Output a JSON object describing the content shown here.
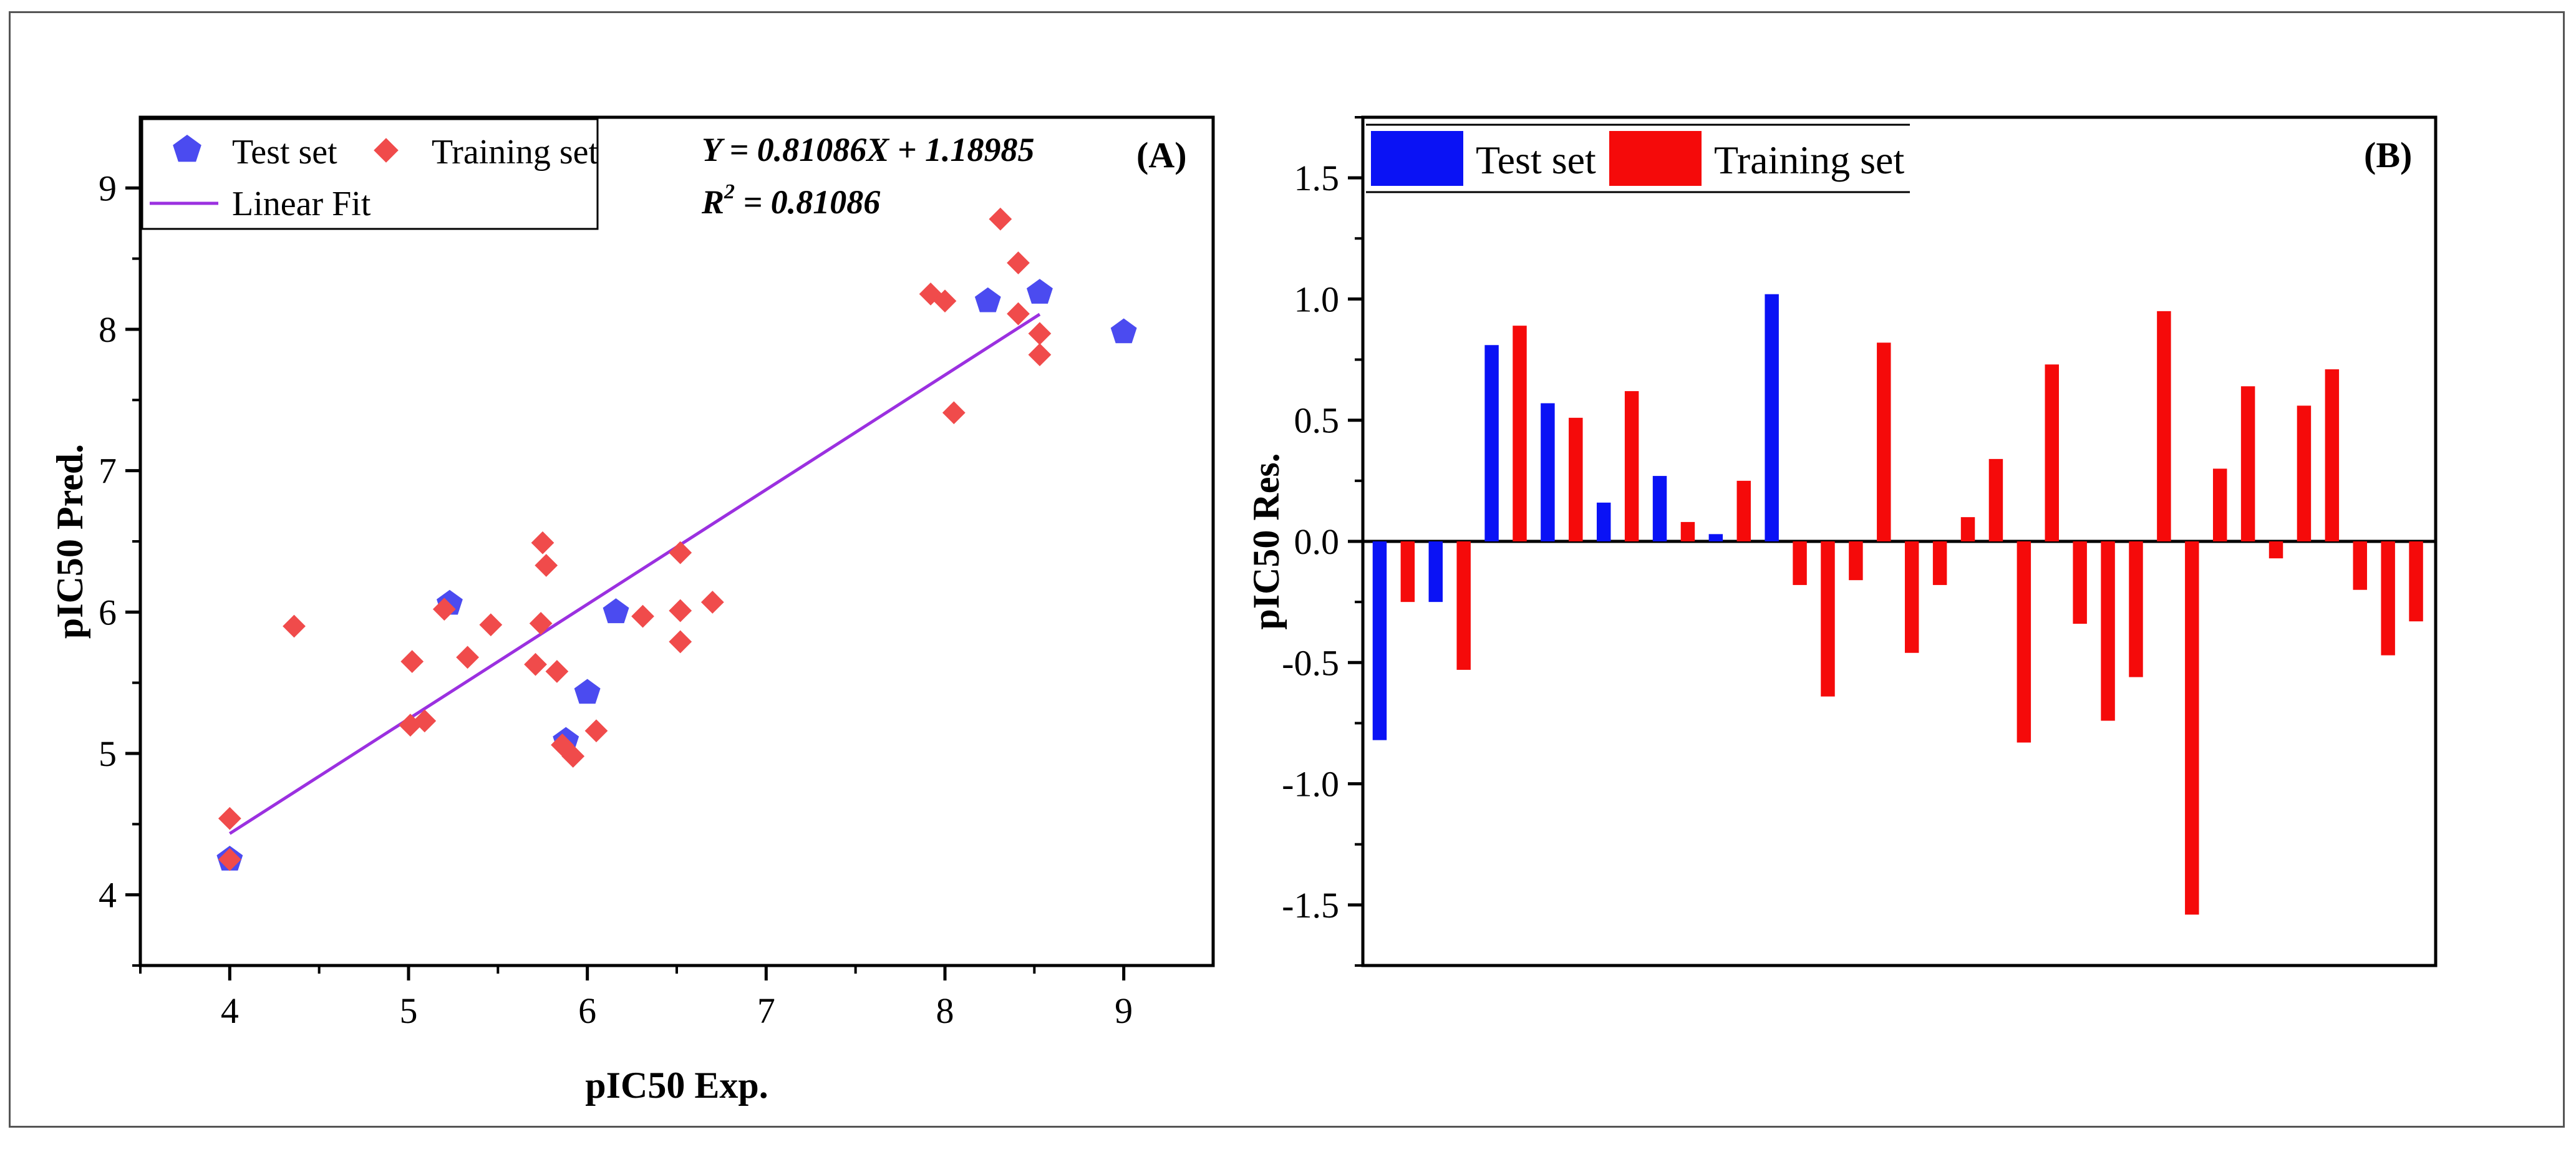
{
  "chart_data": [
    {
      "panel_label": "(A)",
      "type": "scatter",
      "xlabel": "pIC50 Exp.",
      "ylabel": "pIC50 Pred.",
      "xlim": [
        3.5,
        9.5
      ],
      "ylim": [
        3.5,
        9.5
      ],
      "xticks": [
        "4",
        "5",
        "6",
        "7",
        "8",
        "9"
      ],
      "yticks": [
        "4",
        "5",
        "6",
        "7",
        "8",
        "9"
      ],
      "legend": {
        "test": "Test set",
        "train": "Training set",
        "fit": "Linear Fit"
      },
      "equation": "Y = 0.81086X + 1.18985",
      "r2_prefix": "R",
      "r2_sup": "2",
      "r2_value": " = 0.81086",
      "fit": {
        "slope": 0.81086,
        "intercept": 1.18985,
        "x_range": [
          4.0,
          8.53
        ]
      },
      "colors": {
        "test": "#4b4bf0",
        "train": "#f04b4b",
        "fit": "#9b30e0"
      },
      "series": [
        {
          "name": "Test set",
          "points": [
            [
              4.0,
              4.25
            ],
            [
              5.23,
              6.06
            ],
            [
              5.88,
              5.09
            ],
            [
              6.0,
              5.43
            ],
            [
              6.16,
              6.0
            ],
            [
              8.24,
              8.2
            ],
            [
              8.53,
              8.26
            ],
            [
              9.0,
              7.98
            ]
          ]
        },
        {
          "name": "Training set",
          "points": [
            [
              4.0,
              4.54
            ],
            [
              4.0,
              4.25
            ],
            [
              4.36,
              5.9
            ],
            [
              5.01,
              5.2
            ],
            [
              5.02,
              5.65
            ],
            [
              5.09,
              5.23
            ],
            [
              5.2,
              6.02
            ],
            [
              5.33,
              5.68
            ],
            [
              5.46,
              5.91
            ],
            [
              5.71,
              5.63
            ],
            [
              5.74,
              5.92
            ],
            [
              5.75,
              6.49
            ],
            [
              5.77,
              6.33
            ],
            [
              5.83,
              5.58
            ],
            [
              5.86,
              5.06
            ],
            [
              5.92,
              4.98
            ],
            [
              6.05,
              5.16
            ],
            [
              6.31,
              5.97
            ],
            [
              6.52,
              6.42
            ],
            [
              6.52,
              6.01
            ],
            [
              6.52,
              5.79
            ],
            [
              6.7,
              6.07
            ],
            [
              7.92,
              8.25
            ],
            [
              8.0,
              8.2
            ],
            [
              8.05,
              7.41
            ],
            [
              8.31,
              8.78
            ],
            [
              8.41,
              8.47
            ],
            [
              8.41,
              8.11
            ],
            [
              8.53,
              7.97
            ],
            [
              8.53,
              7.82
            ]
          ]
        }
      ]
    },
    {
      "panel_label": "(B)",
      "type": "bar",
      "xlabel": "",
      "ylabel": "pIC50 Res.",
      "ylim": [
        -1.75,
        1.75
      ],
      "yticks": [
        "1.5",
        "1.0",
        "0.5",
        "0.0",
        "-0.5",
        "-1.0",
        "-1.5"
      ],
      "legend": {
        "test": "Test set",
        "train": "Training set"
      },
      "colors": {
        "test": "#0a12f5",
        "train": "#f50a0a"
      },
      "bars": [
        {
          "series": "test",
          "value": -0.82
        },
        {
          "series": "train",
          "value": -0.25
        },
        {
          "series": "test",
          "value": -0.25
        },
        {
          "series": "train",
          "value": -0.53
        },
        {
          "series": "test",
          "value": 0.81
        },
        {
          "series": "train",
          "value": 0.89
        },
        {
          "series": "test",
          "value": 0.57
        },
        {
          "series": "train",
          "value": 0.51
        },
        {
          "series": "test",
          "value": 0.16
        },
        {
          "series": "train",
          "value": 0.62
        },
        {
          "series": "test",
          "value": 0.27
        },
        {
          "series": "train",
          "value": 0.08
        },
        {
          "series": "test",
          "value": 0.03
        },
        {
          "series": "train",
          "value": 0.25
        },
        {
          "series": "test",
          "value": 1.02
        },
        {
          "series": "train",
          "value": -0.18
        },
        {
          "series": "train",
          "value": -0.64
        },
        {
          "series": "train",
          "value": -0.16
        },
        {
          "series": "train",
          "value": 0.82
        },
        {
          "series": "train",
          "value": -0.46
        },
        {
          "series": "train",
          "value": -0.18
        },
        {
          "series": "train",
          "value": 0.1
        },
        {
          "series": "train",
          "value": 0.34
        },
        {
          "series": "train",
          "value": -0.83
        },
        {
          "series": "train",
          "value": 0.73
        },
        {
          "series": "train",
          "value": -0.34
        },
        {
          "series": "train",
          "value": -0.74
        },
        {
          "series": "train",
          "value": -0.56
        },
        {
          "series": "train",
          "value": 0.95
        },
        {
          "series": "train",
          "value": -1.54
        },
        {
          "series": "train",
          "value": 0.3
        },
        {
          "series": "train",
          "value": 0.64
        },
        {
          "series": "train",
          "value": -0.07
        },
        {
          "series": "train",
          "value": 0.56
        },
        {
          "series": "train",
          "value": 0.71
        },
        {
          "series": "train",
          "value": -0.2
        },
        {
          "series": "train",
          "value": -0.47
        },
        {
          "series": "train",
          "value": -0.33
        }
      ]
    }
  ]
}
